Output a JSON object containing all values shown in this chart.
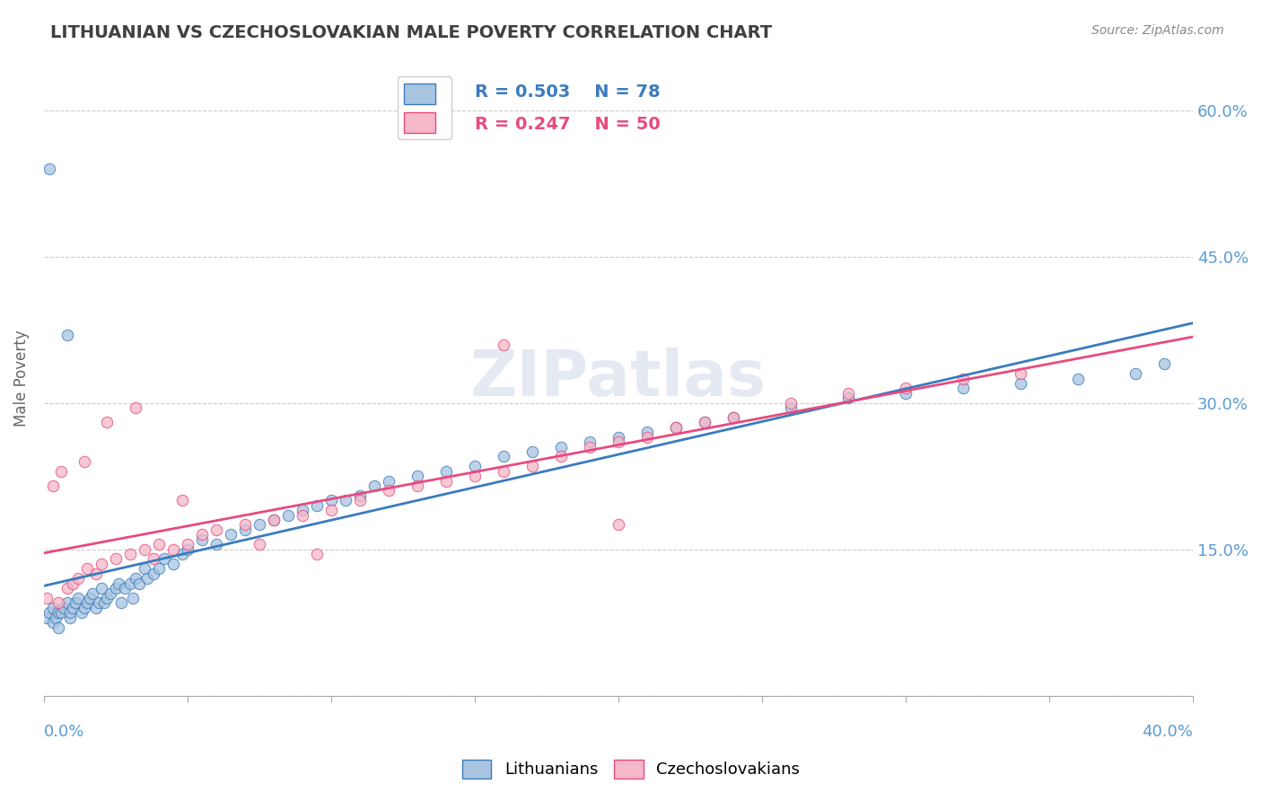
{
  "title": "LITHUANIAN VS CZECHOSLOVAKIAN MALE POVERTY CORRELATION CHART",
  "source": "Source: ZipAtlas.com",
  "ylabel": "Male Poverty",
  "yticks": [
    0.0,
    0.15,
    0.3,
    0.45,
    0.6
  ],
  "ytick_labels": [
    "",
    "15.0%",
    "30.0%",
    "45.0%",
    "60.0%"
  ],
  "xmin": 0.0,
  "xmax": 0.4,
  "ymin": 0.0,
  "ymax": 0.65,
  "legend_entries": [
    {
      "label": "Lithuanians",
      "R": 0.503,
      "N": 78
    },
    {
      "label": "Czechoslovakians",
      "R": 0.247,
      "N": 50
    }
  ],
  "scatter_blue": "#a8c4e0",
  "scatter_pink": "#f4b8c8",
  "watermark": "ZIPatlas",
  "title_color": "#404040",
  "axis_label_color": "#5b9bd5",
  "blue_line_color": "#3a7bbf",
  "pink_line_color": "#e84a7f",
  "lit_x": [
    0.001,
    0.002,
    0.003,
    0.003,
    0.004,
    0.005,
    0.005,
    0.006,
    0.007,
    0.008,
    0.009,
    0.009,
    0.01,
    0.011,
    0.012,
    0.013,
    0.014,
    0.015,
    0.016,
    0.017,
    0.018,
    0.019,
    0.02,
    0.021,
    0.022,
    0.023,
    0.025,
    0.026,
    0.027,
    0.028,
    0.03,
    0.031,
    0.032,
    0.033,
    0.035,
    0.036,
    0.038,
    0.04,
    0.042,
    0.045,
    0.048,
    0.05,
    0.055,
    0.06,
    0.065,
    0.07,
    0.075,
    0.08,
    0.085,
    0.09,
    0.095,
    0.1,
    0.105,
    0.11,
    0.115,
    0.12,
    0.13,
    0.14,
    0.15,
    0.16,
    0.17,
    0.18,
    0.19,
    0.2,
    0.21,
    0.22,
    0.23,
    0.24,
    0.26,
    0.28,
    0.3,
    0.32,
    0.34,
    0.36,
    0.38,
    0.39,
    0.002,
    0.008
  ],
  "lit_y": [
    0.08,
    0.085,
    0.09,
    0.075,
    0.08,
    0.085,
    0.07,
    0.085,
    0.09,
    0.095,
    0.08,
    0.085,
    0.09,
    0.095,
    0.1,
    0.085,
    0.09,
    0.095,
    0.1,
    0.105,
    0.09,
    0.095,
    0.11,
    0.095,
    0.1,
    0.105,
    0.11,
    0.115,
    0.095,
    0.11,
    0.115,
    0.1,
    0.12,
    0.115,
    0.13,
    0.12,
    0.125,
    0.13,
    0.14,
    0.135,
    0.145,
    0.15,
    0.16,
    0.155,
    0.165,
    0.17,
    0.175,
    0.18,
    0.185,
    0.19,
    0.195,
    0.2,
    0.2,
    0.205,
    0.215,
    0.22,
    0.225,
    0.23,
    0.235,
    0.245,
    0.25,
    0.255,
    0.26,
    0.265,
    0.27,
    0.275,
    0.28,
    0.285,
    0.295,
    0.305,
    0.31,
    0.315,
    0.32,
    0.325,
    0.33,
    0.34,
    0.54,
    0.37
  ],
  "czech_x": [
    0.001,
    0.005,
    0.008,
    0.01,
    0.012,
    0.015,
    0.018,
    0.02,
    0.025,
    0.03,
    0.035,
    0.038,
    0.04,
    0.045,
    0.05,
    0.055,
    0.06,
    0.07,
    0.08,
    0.09,
    0.1,
    0.11,
    0.12,
    0.13,
    0.14,
    0.15,
    0.16,
    0.17,
    0.18,
    0.19,
    0.2,
    0.21,
    0.22,
    0.23,
    0.24,
    0.26,
    0.28,
    0.3,
    0.32,
    0.34,
    0.006,
    0.003,
    0.014,
    0.022,
    0.032,
    0.048,
    0.075,
    0.095,
    0.16,
    0.2
  ],
  "czech_y": [
    0.1,
    0.095,
    0.11,
    0.115,
    0.12,
    0.13,
    0.125,
    0.135,
    0.14,
    0.145,
    0.15,
    0.14,
    0.155,
    0.15,
    0.155,
    0.165,
    0.17,
    0.175,
    0.18,
    0.185,
    0.19,
    0.2,
    0.21,
    0.215,
    0.22,
    0.225,
    0.23,
    0.235,
    0.245,
    0.255,
    0.26,
    0.265,
    0.275,
    0.28,
    0.285,
    0.3,
    0.31,
    0.315,
    0.325,
    0.33,
    0.23,
    0.215,
    0.24,
    0.28,
    0.295,
    0.2,
    0.155,
    0.145,
    0.36,
    0.175
  ]
}
